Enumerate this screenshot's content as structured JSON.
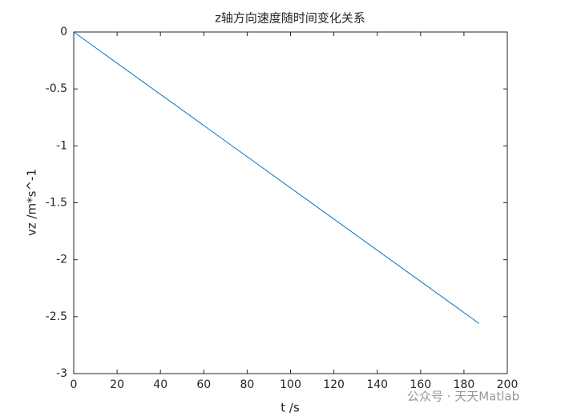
{
  "chart_data": {
    "type": "line",
    "title": "z轴方向速度随时间变化关系",
    "xlabel": "t  /s",
    "ylabel": "vz  /m*s^-1",
    "series": [
      {
        "name": "vz",
        "color": "#0072bd",
        "x": [
          0,
          187
        ],
        "values": [
          0,
          -2.56
        ]
      }
    ],
    "xlim": [
      0,
      200
    ],
    "xticks": [
      0,
      20,
      40,
      60,
      80,
      100,
      120,
      140,
      160,
      180,
      200
    ],
    "ylim": [
      -3,
      0
    ],
    "yticks": [
      0,
      -0.5,
      -1,
      -1.5,
      -2,
      -2.5,
      -3
    ],
    "grid": false,
    "box": true,
    "watermark": "公众号 · 天天Matlab"
  }
}
